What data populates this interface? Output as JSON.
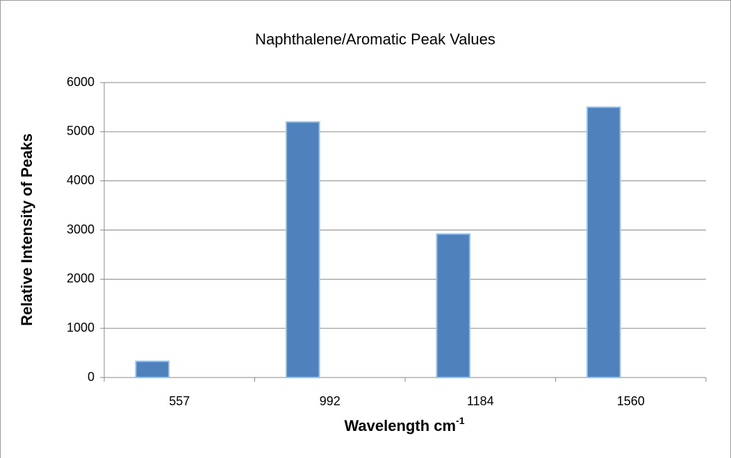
{
  "chart_data": {
    "type": "bar",
    "title": "Naphthalene/Aromatic Peak Values",
    "xlabel": {
      "text": "Wavelength cm",
      "superscript": "-1"
    },
    "ylabel": "Relative Intensity of Peaks",
    "categories": [
      "557",
      "992",
      "1184",
      "1560"
    ],
    "values": [
      330,
      5200,
      2920,
      5500
    ],
    "color": "#4f81bd",
    "edge_color": "#9dc3e6",
    "ylim": [
      0,
      6000
    ],
    "yticks": [
      0,
      1000,
      2000,
      3000,
      4000,
      5000,
      6000
    ],
    "grid": true
  }
}
